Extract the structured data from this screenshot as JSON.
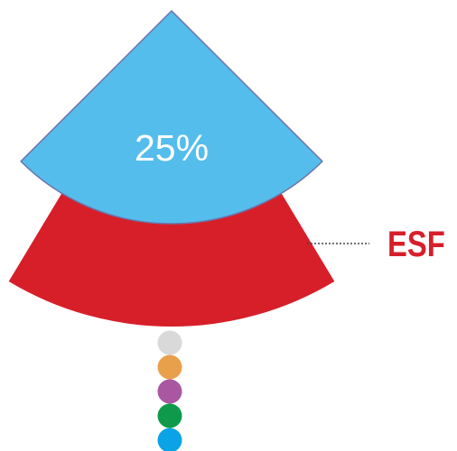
{
  "chart_data": {
    "type": "pie",
    "segments": [
      {
        "label": "",
        "value": 25,
        "value_label": "25%",
        "color": "#55bdec"
      }
    ],
    "callout": {
      "label": "ESF",
      "color": "#d71f2a"
    },
    "dots": [
      "#d9d9d9",
      "#e8a04a",
      "#a857a0",
      "#0e9a4a",
      "#0aa4e6"
    ]
  }
}
